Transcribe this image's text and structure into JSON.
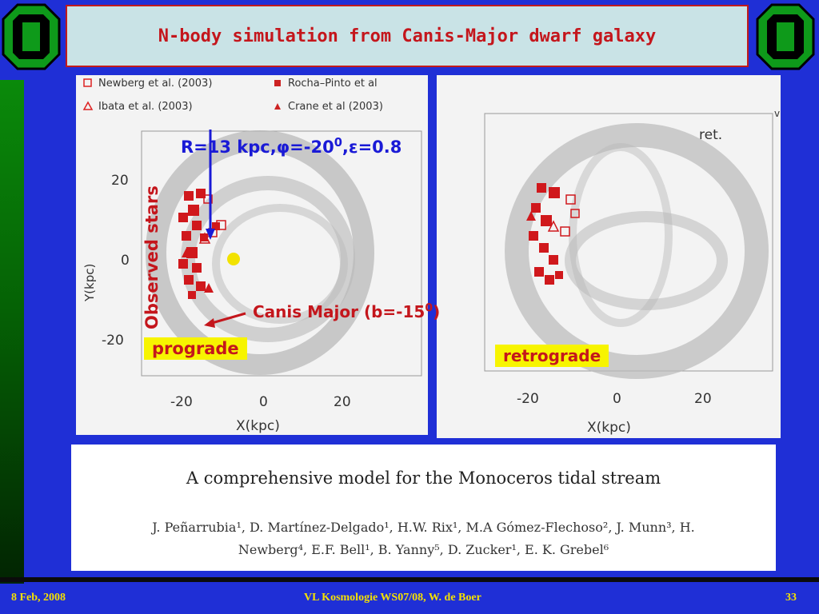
{
  "header": {
    "title": "N-body simulation from Canis-Major dwarf galaxy"
  },
  "left_plot": {
    "legend": {
      "newberg": "Newberg et al. (2003)",
      "rocha": "Rocha–Pinto et al",
      "ibata": "Ibata et al. (2003)",
      "crane": "Crane et al (2003)"
    },
    "ylabel": "Y(kpc)",
    "xlabel": "X(kpc)",
    "yticks": [
      "20",
      "0",
      "-20"
    ],
    "xticks": [
      "-20",
      "0",
      "20"
    ]
  },
  "right_plot": {
    "corner_label": "ret.",
    "xlabel": "X(kpc)",
    "xticks": [
      "-20",
      "0",
      "20"
    ],
    "edge_letter": "v"
  },
  "annotations": {
    "params": "R=13 kpc,φ=-20",
    "params_sup": "0",
    "params_tail": ",ε=0.8",
    "observed_stars": "Observed stars",
    "canis_major": "Canis Major (b=-15",
    "canis_major_sup": "0",
    "canis_major_tail": ")",
    "prograde": "prograde",
    "retrograde": "retrograde"
  },
  "paper": {
    "title": "A comprehensive model for the Monoceros tidal stream",
    "authors_line1": "J. Peñarrubia¹, D. Martínez-Delgado¹, H.W. Rix¹, M.A Gómez-Flechoso², J. Munn³, H.",
    "authors_line2": "Newberg⁴, E.F. Bell¹, B. Yanny⁵, D. Zucker¹, E. K. Grebel⁶"
  },
  "footer": {
    "date": "8 Feb, 2008",
    "course": "VL Kosmologie WS07/08,  W. de Boer",
    "page": "33"
  },
  "colors": {
    "background": "#1f2fd6",
    "title_text": "#c4161c",
    "footer_text": "#f5e100",
    "highlight": "#f7f400"
  }
}
